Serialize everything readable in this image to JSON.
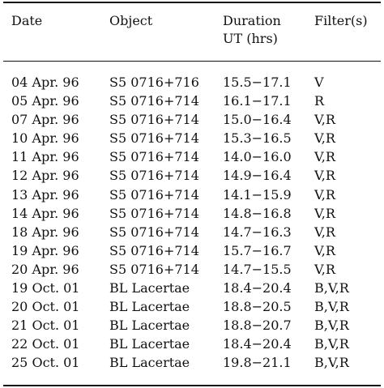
{
  "table": {
    "headers": {
      "date": "Date",
      "object": "Object",
      "duration_line1": "Duration",
      "duration_line2": "UT (hrs)",
      "filters": "Filter(s)"
    },
    "rows": [
      {
        "date": "04 Apr. 96",
        "object": "S5 0716+716",
        "duration": "15.5−17.1",
        "filters": "V"
      },
      {
        "date": "05 Apr. 96",
        "object": "S5 0716+714",
        "duration": "16.1−17.1",
        "filters": "R"
      },
      {
        "date": "07 Apr. 96",
        "object": "S5 0716+714",
        "duration": "15.0−16.4",
        "filters": "V,R"
      },
      {
        "date": "10 Apr. 96",
        "object": "S5 0716+714",
        "duration": "15.3−16.5",
        "filters": "V,R"
      },
      {
        "date": "11 Apr. 96",
        "object": "S5 0716+714",
        "duration": "14.0−16.0",
        "filters": "V,R"
      },
      {
        "date": "12 Apr. 96",
        "object": "S5 0716+714",
        "duration": "14.9−16.4",
        "filters": "V,R"
      },
      {
        "date": "13 Apr. 96",
        "object": "S5 0716+714",
        "duration": "14.1−15.9",
        "filters": "V,R"
      },
      {
        "date": "14 Apr. 96",
        "object": "S5 0716+714",
        "duration": "14.8−16.8",
        "filters": "V,R"
      },
      {
        "date": "18 Apr. 96",
        "object": "S5 0716+714",
        "duration": "14.7−16.3",
        "filters": "V,R"
      },
      {
        "date": "19 Apr. 96",
        "object": "S5 0716+714",
        "duration": "15.7−16.7",
        "filters": "V,R"
      },
      {
        "date": "20 Apr. 96",
        "object": "S5 0716+714",
        "duration": "14.7−15.5",
        "filters": "V,R"
      },
      {
        "date": "19 Oct. 01",
        "object": "BL Lacertae",
        "duration": "18.4−20.4",
        "filters": "B,V,R"
      },
      {
        "date": "20 Oct. 01",
        "object": "BL Lacertae",
        "duration": "18.8−20.5",
        "filters": "B,V,R"
      },
      {
        "date": "21 Oct. 01",
        "object": "BL Lacertae",
        "duration": "18.8−20.7",
        "filters": "B,V,R"
      },
      {
        "date": "22 Oct. 01",
        "object": "BL Lacertae",
        "duration": "18.4−20.4",
        "filters": "B,V,R"
      },
      {
        "date": "25 Oct. 01",
        "object": "BL Lacertae",
        "duration": "19.8−21.1",
        "filters": "B,V,R"
      }
    ]
  }
}
